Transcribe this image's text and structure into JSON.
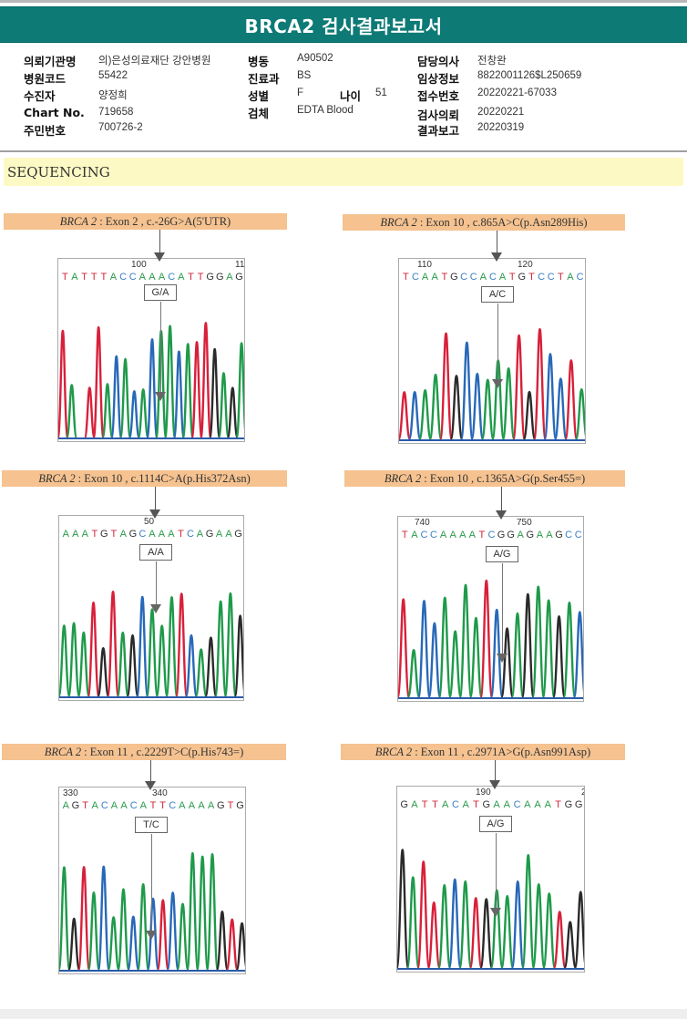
{
  "report": {
    "title": "BRCA2 검사결과보고서"
  },
  "patient_info": {
    "col1": [
      {
        "label": "의뢰기관명",
        "value": "의)은성의료재단 강안병원"
      },
      {
        "label": "병원코드",
        "value": "55422"
      },
      {
        "label": "수진자",
        "value": "양정희"
      },
      {
        "label": "Chart No.",
        "value": "719658"
      },
      {
        "label": "주민번호",
        "value": "700726-2"
      }
    ],
    "col2": [
      {
        "label": "병동",
        "value": "A90502"
      },
      {
        "label": "진료과",
        "value": "BS"
      },
      {
        "label": "성별",
        "value": "F"
      },
      {
        "label": "검체",
        "value": "EDTA Blood"
      }
    ],
    "age": {
      "label": "나이",
      "value": "51"
    },
    "col3": [
      {
        "label": "담당의사",
        "value": "전창완"
      },
      {
        "label": "임상정보",
        "value": "8822001126$L250659"
      },
      {
        "label": "접수번호",
        "value": "20220221-67033"
      },
      {
        "label": "검사의뢰",
        "value": "20220221"
      },
      {
        "label": "결과보고",
        "value": "20220319"
      }
    ]
  },
  "section": {
    "title": "SEQUENCING"
  },
  "base_colors": {
    "A": "#2a9a4a",
    "C": "#3a7fc4",
    "G": "#333333",
    "T": "#d0283a"
  },
  "variants": [
    {
      "gene": "BRCA 2",
      "description": ": Exon 2 , c.-26G>A(5'UTR)",
      "genotype": "G/A",
      "positions": [
        {
          "label": "100"
        },
        {
          "label": "11"
        }
      ],
      "sequence": "TATTTACCAAACATTGGAG",
      "peaks": "RGTRRGBGBGBGGBGRRKGKG"
    },
    {
      "gene": "BRCA 2",
      "description": ": Exon 10 , c.865A>C(p.Asn289His)",
      "genotype": "A/C",
      "positions": [
        {
          "label": "110"
        },
        {
          "label": "120"
        }
      ],
      "sequence": "TCAATGCCACATGTCCTAC",
      "peaks": "RBGGRKBBGGGRKRBBRG"
    },
    {
      "gene": "BRCA 2",
      "description": ": Exon 10 , c.1114C>A(p.His372Asn)",
      "genotype": "A/A",
      "positions": [
        {
          "label": "50"
        }
      ],
      "sequence": "AAATGTAGCAAATCAGAAG",
      "peaks": "GGGRKRGKBGGGRBGKGGK"
    },
    {
      "gene": "BRCA 2",
      "description": ": Exon 10 , c.1365A>G(p.Ser455=)",
      "genotype": "A/G",
      "positions": [
        {
          "label": "740"
        },
        {
          "label": "750"
        }
      ],
      "sequence": "TACCAAAATCGGAGAAGCC",
      "peaks": "RGBBGGGGRBKGKGGKGB"
    },
    {
      "gene": "BRCA 2",
      "description": ": Exon 11 , c.2229T>C(p.His743=)",
      "genotype": "T/C",
      "positions": [
        {
          "label": "330"
        },
        {
          "label": "340"
        }
      ],
      "sequence": "AGTACAACATTCAAAAGTG",
      "peaks": "GKRGBGGBGBRBGGGGKRK"
    },
    {
      "gene": "BRCA 2",
      "description": ": Exon 11 , c.2971A>G(p.Asn991Asp)",
      "genotype": "A/G",
      "positions": [
        {
          "label": "190"
        },
        {
          "label": "2"
        }
      ],
      "sequence": "GATTACATGAACAAATGG",
      "peaks": "KGRRGBGRKGGBGGGRKK"
    }
  ]
}
